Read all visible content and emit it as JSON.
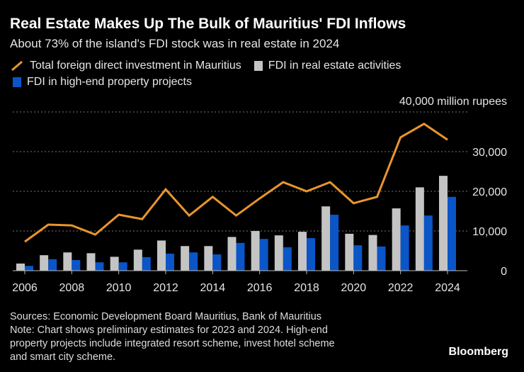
{
  "title": "Real Estate Makes Up The Bulk of Mauritius' FDI Inflows",
  "subtitle": "About 73% of the island's FDI stock was in real estate in 2024",
  "footer": {
    "sources": "Sources: Economic Development Board Mauritius, Bank of Mauritius",
    "note1": "Note: Chart shows preliminary estimates for 2023 and 2024. High-end",
    "note2": "property projects include integrated resort scheme, invest hotel scheme",
    "note3": "and smart city scheme.",
    "brand": "Bloomberg"
  },
  "colors": {
    "total": "#e8952e",
    "real_estate": "#c4c4c4",
    "high_end": "#0a55c8"
  },
  "chart_data": {
    "type": "bar+line",
    "unit_label": "40,000 million rupees",
    "x": [
      2006,
      2007,
      2008,
      2009,
      2010,
      2011,
      2012,
      2013,
      2014,
      2015,
      2016,
      2017,
      2018,
      2019,
      2020,
      2021,
      2022,
      2023,
      2024
    ],
    "xticks": [
      "2006",
      "2008",
      "2010",
      "2012",
      "2014",
      "2016",
      "2018",
      "2020",
      "2022",
      "2024"
    ],
    "yticks": [
      "0",
      "10,000",
      "20,000",
      "30,000"
    ],
    "ylim": [
      0,
      40000
    ],
    "series": [
      {
        "name": "Total foreign direct investment in Mauritius",
        "type": "line",
        "values": [
          7300,
          11600,
          11400,
          9100,
          14100,
          13000,
          20500,
          13900,
          18600,
          13900,
          18200,
          22300,
          20000,
          22300,
          17000,
          18600,
          33600,
          37000,
          33000
        ]
      },
      {
        "name": "FDI in real estate activities",
        "type": "bar",
        "values": [
          1800,
          3900,
          4600,
          4400,
          3500,
          5300,
          7600,
          6200,
          6200,
          8500,
          10000,
          8900,
          9800,
          16200,
          9300,
          9000,
          15700,
          21000,
          23900
        ]
      },
      {
        "name": "FDI in high-end property projects",
        "type": "bar",
        "values": [
          1200,
          2900,
          2700,
          2100,
          2100,
          3400,
          4300,
          4600,
          4100,
          7000,
          8000,
          5900,
          8200,
          14100,
          6400,
          6100,
          11400,
          13900,
          18600
        ]
      }
    ],
    "legend": "top-left"
  }
}
